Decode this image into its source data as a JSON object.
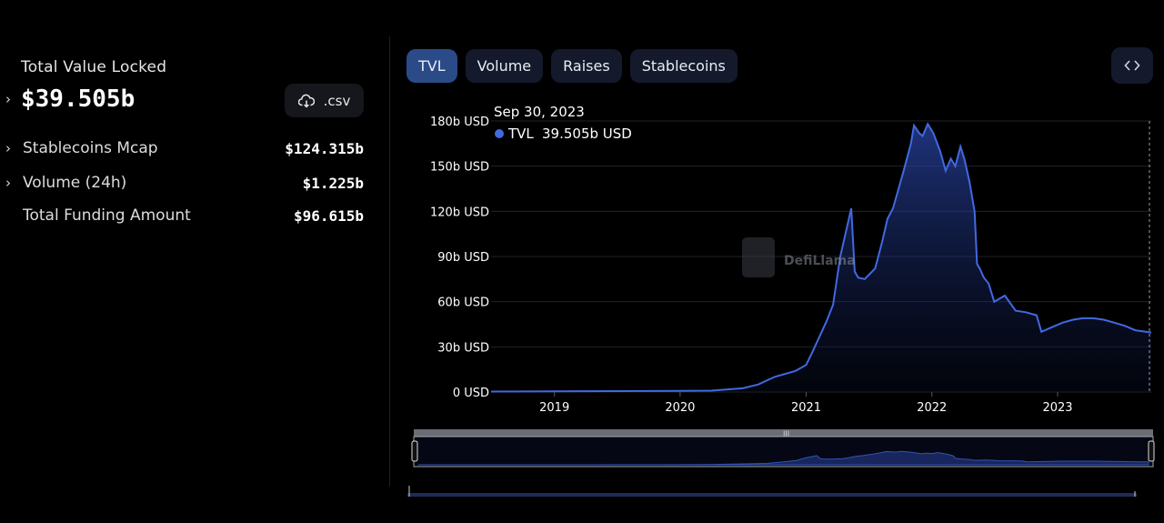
{
  "summary": {
    "tvl_label": "Total Value Locked",
    "tvl_value": "$39.505b",
    "csv_label": ".csv",
    "metrics": [
      {
        "label": "Stablecoins Mcap",
        "value": "$124.315b",
        "expandable": true
      },
      {
        "label": "Volume (24h)",
        "value": "$1.225b",
        "expandable": true
      },
      {
        "label": "Total Funding Amount",
        "value": "$96.615b",
        "expandable": false
      }
    ]
  },
  "tabs": [
    {
      "label": "TVL",
      "active": true
    },
    {
      "label": "Volume",
      "active": false
    },
    {
      "label": "Raises",
      "active": false
    },
    {
      "label": "Stablecoins",
      "active": false
    }
  ],
  "icons": {
    "download": "download-icon",
    "embed": "code-brackets-icon",
    "watermark": "defillama-logo"
  },
  "colors": {
    "line": "#4169e1",
    "active_tab": "#2a4a88",
    "tab": "#141a2b"
  },
  "tooltip": {
    "date": "Sep 30, 2023",
    "series": "TVL",
    "value": "39.505b USD"
  },
  "watermark": "DefiLlama",
  "chart_data": {
    "type": "area",
    "title": "",
    "xlabel": "",
    "ylabel": "",
    "x_ticks": [
      "2019",
      "2020",
      "2021",
      "2022",
      "2023"
    ],
    "y_ticks": [
      "0 USD",
      "30b USD",
      "60b USD",
      "90b USD",
      "120b USD",
      "150b USD",
      "180b USD"
    ],
    "ylim": [
      0,
      180
    ],
    "xlim": [
      "2018-07-01",
      "2023-09-30"
    ],
    "grid": true,
    "series": [
      {
        "name": "TVL",
        "x": [
          "2018-07-01",
          "2019-01-01",
          "2019-07-01",
          "2020-01-01",
          "2020-04-01",
          "2020-07-01",
          "2020-08-15",
          "2020-10-01",
          "2020-12-01",
          "2021-01-01",
          "2021-01-20",
          "2021-02-15",
          "2021-03-01",
          "2021-03-20",
          "2021-04-10",
          "2021-05-12",
          "2021-05-22",
          "2021-06-01",
          "2021-06-20",
          "2021-07-20",
          "2021-08-10",
          "2021-08-25",
          "2021-09-10",
          "2021-10-10",
          "2021-11-01",
          "2021-11-10",
          "2021-11-25",
          "2021-12-05",
          "2021-12-20",
          "2022-01-05",
          "2022-01-25",
          "2022-02-10",
          "2022-02-25",
          "2022-03-10",
          "2022-03-25",
          "2022-04-05",
          "2022-04-20",
          "2022-05-05",
          "2022-05-12",
          "2022-05-20",
          "2022-06-01",
          "2022-06-15",
          "2022-07-01",
          "2022-08-01",
          "2022-09-01",
          "2022-10-01",
          "2022-11-01",
          "2022-11-15",
          "2022-12-15",
          "2023-01-15",
          "2023-02-15",
          "2023-03-15",
          "2023-04-15",
          "2023-05-15",
          "2023-06-15",
          "2023-07-15",
          "2023-08-15",
          "2023-09-30"
        ],
        "y": [
          0.3,
          0.5,
          0.6,
          0.7,
          0.9,
          2.5,
          5,
          10,
          14,
          18,
          27,
          40,
          47,
          58,
          90,
          122,
          80,
          76,
          75,
          82,
          100,
          115,
          122,
          146,
          165,
          177,
          172,
          170,
          178,
          172,
          160,
          147,
          155,
          150,
          163,
          155,
          140,
          120,
          85,
          82,
          76,
          72,
          60,
          64,
          54,
          53,
          51,
          40,
          43,
          46,
          48,
          49,
          49,
          48,
          46,
          44,
          41,
          39.505
        ]
      }
    ],
    "navigator": {
      "range": [
        "2018-07-01",
        "2023-09-30"
      ]
    }
  }
}
